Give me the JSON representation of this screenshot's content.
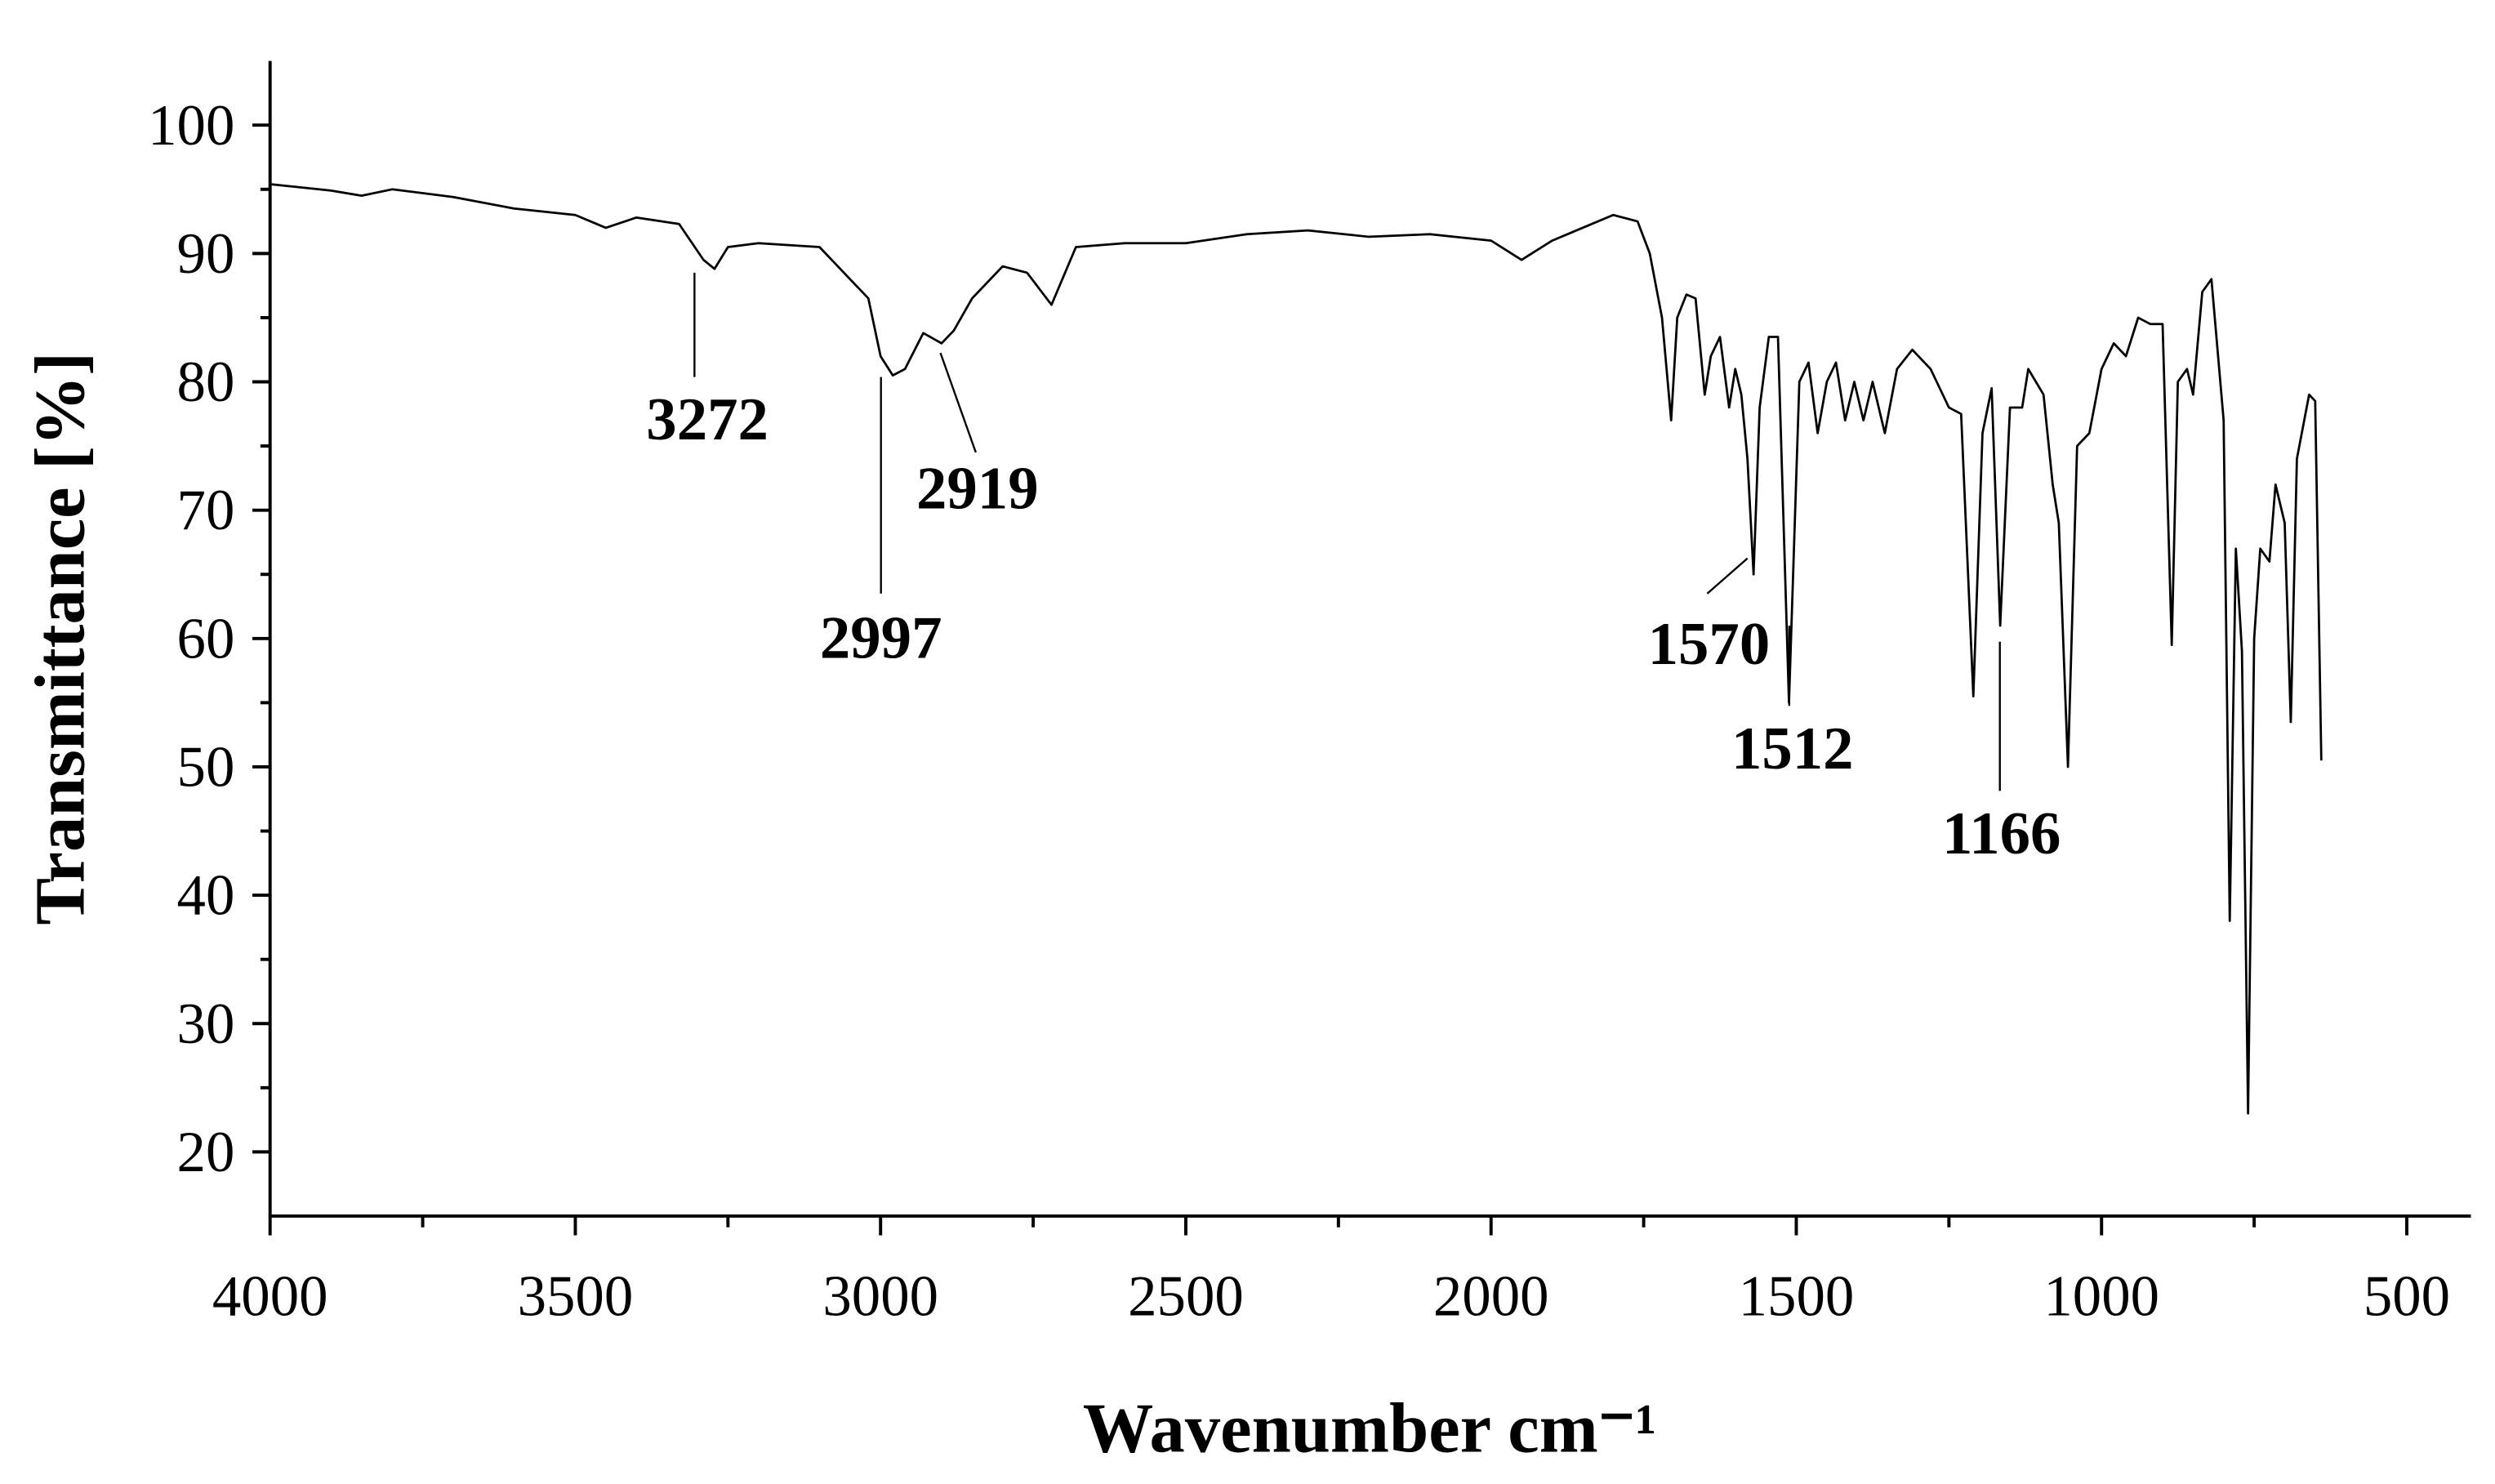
{
  "chart_data": {
    "type": "line",
    "xlabel": "Wavenumber cm⁻¹",
    "ylabel": "Transmittance [%]",
    "color": "#000000",
    "xlim": [
      4000,
      395
    ],
    "ylim": [
      15,
      105
    ],
    "xticks": [
      4000,
      3500,
      3000,
      2500,
      2000,
      1500,
      1000,
      500
    ],
    "yticks": [
      20,
      30,
      40,
      50,
      60,
      70,
      80,
      90,
      100
    ],
    "x": [
      4000,
      3900,
      3850,
      3800,
      3700,
      3600,
      3500,
      3450,
      3400,
      3330,
      3290,
      3272,
      3250,
      3200,
      3100,
      3050,
      3020,
      3000,
      2980,
      2960,
      2930,
      2900,
      2880,
      2850,
      2800,
      2760,
      2720,
      2680,
      2600,
      2500,
      2400,
      2300,
      2200,
      2100,
      2000,
      1950,
      1900,
      1850,
      1800,
      1760,
      1740,
      1720,
      1705,
      1695,
      1680,
      1665,
      1650,
      1640,
      1625,
      1610,
      1600,
      1590,
      1580,
      1570,
      1560,
      1545,
      1530,
      1512,
      1495,
      1480,
      1465,
      1450,
      1435,
      1420,
      1405,
      1390,
      1375,
      1355,
      1335,
      1310,
      1280,
      1250,
      1230,
      1210,
      1195,
      1180,
      1166,
      1150,
      1130,
      1120,
      1095,
      1080,
      1070,
      1055,
      1040,
      1020,
      1000,
      980,
      960,
      940,
      920,
      900,
      885,
      875,
      860,
      850,
      835,
      820,
      800,
      790,
      780,
      770,
      760,
      750,
      740,
      725,
      715,
      700,
      690,
      680,
      660,
      650,
      640
    ],
    "values": [
      95.4,
      94.9,
      94.5,
      95.0,
      94.4,
      93.5,
      93.0,
      92.0,
      92.8,
      92.3,
      89.5,
      88.8,
      90.5,
      90.8,
      90.5,
      88,
      86.5,
      82,
      80.5,
      81,
      83.8,
      83.0,
      84,
      86.5,
      89,
      88.5,
      86.0,
      90.5,
      90.8,
      90.8,
      91.5,
      91.8,
      91.3,
      91.5,
      91.0,
      89.5,
      91,
      92,
      93,
      92.5,
      90,
      85,
      77,
      85,
      86.8,
      86.5,
      79,
      82,
      83.5,
      78,
      81,
      79,
      74,
      65,
      78,
      83.5,
      83.5,
      55,
      80,
      81.5,
      76,
      80,
      81.5,
      77,
      80,
      77,
      80,
      76,
      81,
      82.5,
      81,
      78,
      77.5,
      55.5,
      76,
      79.5,
      61,
      78,
      78,
      81,
      79,
      72,
      69,
      50,
      75,
      76,
      81,
      83,
      82,
      85,
      84.5,
      84.5,
      59.5,
      80,
      81,
      79,
      87,
      88,
      77,
      38,
      67,
      59,
      23,
      60,
      67,
      66,
      72,
      69,
      53.5,
      74,
      79,
      78.5,
      50.5
    ],
    "annotations": [
      "3272",
      "2997",
      "2919",
      "1570",
      "1512",
      "1166"
    ]
  }
}
